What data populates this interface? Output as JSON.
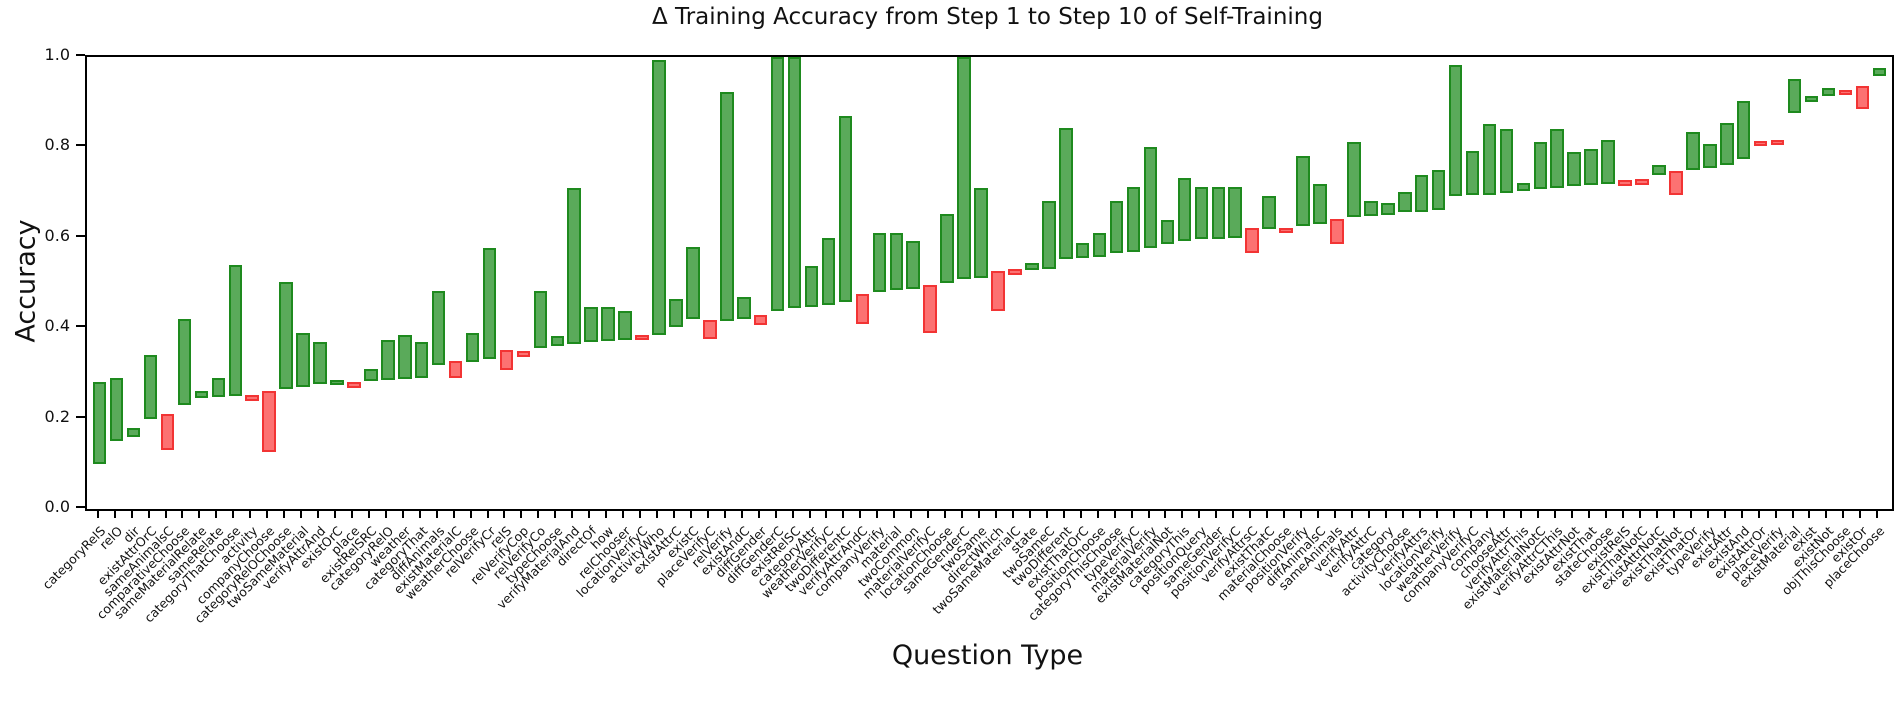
{
  "page": {
    "background": "#ffffff"
  },
  "chart_data": {
    "type": "bar",
    "variant": "floating-range-bars",
    "title": "Δ Training Accuracy from Step 1 to Step 10 of Self-Training",
    "xlabel": "Question Type",
    "ylabel": "Accuracy",
    "ylim": [
      0.0,
      1.0
    ],
    "yticks": [
      "0.0",
      "0.2",
      "0.4",
      "0.6",
      "0.8",
      "1.0"
    ],
    "grid": false,
    "legend": null,
    "colors": {
      "increase_fill": "#5aaa5a",
      "increase_edge": "#1e8a1e",
      "decrease_fill": "#fc7272",
      "decrease_edge": "#f23434",
      "axis": "#000000"
    },
    "semantics": "Each bar spans from Step-1 training accuracy to Step-10 training accuracy; green bars = accuracy increased, red bars = accuracy decreased. Bars sorted by Step-1 accuracy.",
    "bars": [
      {
        "label": "categoryRelS",
        "step1": 0.1,
        "step10": 0.28
      },
      {
        "label": "relO",
        "step1": 0.15,
        "step10": 0.29
      },
      {
        "label": "dir",
        "step1": 0.16,
        "step10": 0.18
      },
      {
        "label": "existAttrOrC",
        "step1": 0.2,
        "step10": 0.34
      },
      {
        "label": "sameAnimalsC",
        "step1": 0.21,
        "step10": 0.13
      },
      {
        "label": "comparativeChoose",
        "step1": 0.23,
        "step10": 0.42
      },
      {
        "label": "sameMaterialRelate",
        "step1": 0.245,
        "step10": 0.262
      },
      {
        "label": "sameRelate",
        "step1": 0.248,
        "step10": 0.29
      },
      {
        "label": "categoryThatChoose",
        "step1": 0.25,
        "step10": 0.54
      },
      {
        "label": "activity",
        "step1": 0.253,
        "step10": 0.24
      },
      {
        "label": "companyChoose",
        "step1": 0.26,
        "step10": 0.125
      },
      {
        "label": "categoryRelOChoose",
        "step1": 0.266,
        "step10": 0.503
      },
      {
        "label": "twoSameMaterial",
        "step1": 0.27,
        "step10": 0.39
      },
      {
        "label": "verifyAttrAnd",
        "step1": 0.276,
        "step10": 0.369
      },
      {
        "label": "existOrC",
        "step1": 0.277,
        "step10": 0.285
      },
      {
        "label": "place",
        "step1": 0.282,
        "step10": 0.268
      },
      {
        "label": "existRelSRC",
        "step1": 0.283,
        "step10": 0.31
      },
      {
        "label": "categoryRelO",
        "step1": 0.285,
        "step10": 0.375
      },
      {
        "label": "weather",
        "step1": 0.288,
        "step10": 0.386
      },
      {
        "label": "categoryThat",
        "step1": 0.29,
        "step10": 0.37
      },
      {
        "label": "diffAnimals",
        "step1": 0.319,
        "step10": 0.482
      },
      {
        "label": "existMaterialC",
        "step1": 0.327,
        "step10": 0.29
      },
      {
        "label": "weatherChoose",
        "step1": 0.325,
        "step10": 0.39
      },
      {
        "label": "relVerifyCr",
        "step1": 0.331,
        "step10": 0.577
      },
      {
        "label": "relS",
        "step1": 0.351,
        "step10": 0.307
      },
      {
        "label": "relVerifyCop",
        "step1": 0.349,
        "step10": 0.336
      },
      {
        "label": "relVerifyCo",
        "step1": 0.356,
        "step10": 0.482
      },
      {
        "label": "typeChoose",
        "step1": 0.361,
        "step10": 0.383
      },
      {
        "label": "verifyMaterialAnd",
        "step1": 0.364,
        "step10": 0.71
      },
      {
        "label": "directOf",
        "step1": 0.369,
        "step10": 0.447
      },
      {
        "label": "how",
        "step1": 0.371,
        "step10": 0.447
      },
      {
        "label": "relChooser",
        "step1": 0.373,
        "step10": 0.437
      },
      {
        "label": "locationVerifyC",
        "step1": 0.385,
        "step10": 0.378
      },
      {
        "label": "activityWho",
        "step1": 0.384,
        "step10": 0.993
      },
      {
        "label": "existAttrC",
        "step1": 0.403,
        "step10": 0.464
      },
      {
        "label": "existC",
        "step1": 0.42,
        "step10": 0.58
      },
      {
        "label": "placeVerifyC",
        "step1": 0.418,
        "step10": 0.375
      },
      {
        "label": "relVerify",
        "step1": 0.417,
        "step10": 0.923
      },
      {
        "label": "existAndC",
        "step1": 0.42,
        "step10": 0.469
      },
      {
        "label": "diffGender",
        "step1": 0.43,
        "step10": 0.406
      },
      {
        "label": "diffGenderC",
        "step1": 0.437,
        "step10": 1.0
      },
      {
        "label": "existRelSC",
        "step1": 0.445,
        "step10": 1.0
      },
      {
        "label": "categoryAttr",
        "step1": 0.447,
        "step10": 0.538
      },
      {
        "label": "weatherVerifyC",
        "step1": 0.451,
        "step10": 0.6
      },
      {
        "label": "twoDifferentC",
        "step1": 0.457,
        "step10": 0.87
      },
      {
        "label": "verifyAttrAndC",
        "step1": 0.476,
        "step10": 0.41
      },
      {
        "label": "companyVerify",
        "step1": 0.48,
        "step10": 0.611
      },
      {
        "label": "material",
        "step1": 0.484,
        "step10": 0.611
      },
      {
        "label": "twoCommon",
        "step1": 0.487,
        "step10": 0.592
      },
      {
        "label": "materialVerifyC",
        "step1": 0.496,
        "step10": 0.39
      },
      {
        "label": "locationChoose",
        "step1": 0.501,
        "step10": 0.653
      },
      {
        "label": "sameGenderC",
        "step1": 0.508,
        "step10": 1.0
      },
      {
        "label": "twoSame",
        "step1": 0.51,
        "step10": 0.71
      },
      {
        "label": "directWhich",
        "step1": 0.526,
        "step10": 0.437
      },
      {
        "label": "twoSameMaterialC",
        "step1": 0.532,
        "step10": 0.517
      },
      {
        "label": "state",
        "step1": 0.528,
        "step10": 0.545
      },
      {
        "label": "twoSameC",
        "step1": 0.53,
        "step10": 0.681
      },
      {
        "label": "twoDifferent",
        "step1": 0.554,
        "step10": 0.843
      },
      {
        "label": "existThatOrC",
        "step1": 0.556,
        "step10": 0.589
      },
      {
        "label": "positionChoose",
        "step1": 0.558,
        "step10": 0.611
      },
      {
        "label": "categoryThisChoose",
        "step1": 0.567,
        "step10": 0.681
      },
      {
        "label": "typeVerifyC",
        "step1": 0.569,
        "step10": 0.712
      },
      {
        "label": "materialVerify",
        "step1": 0.577,
        "step10": 0.801
      },
      {
        "label": "existMaterialNot",
        "step1": 0.587,
        "step10": 0.639
      },
      {
        "label": "categoryThis",
        "step1": 0.592,
        "step10": 0.732
      },
      {
        "label": "positionQuery",
        "step1": 0.597,
        "step10": 0.712
      },
      {
        "label": "sameGender",
        "step1": 0.598,
        "step10": 0.712
      },
      {
        "label": "positionVerifyC",
        "step1": 0.599,
        "step10": 0.712
      },
      {
        "label": "verifyAttrsC",
        "step1": 0.622,
        "step10": 0.567
      },
      {
        "label": "existThatC",
        "step1": 0.619,
        "step10": 0.692
      },
      {
        "label": "materialChoose",
        "step1": 0.622,
        "step10": 0.614
      },
      {
        "label": "positionVerify",
        "step1": 0.626,
        "step10": 0.781
      },
      {
        "label": "diffAnimalsC",
        "step1": 0.631,
        "step10": 0.72
      },
      {
        "label": "sameAnimals",
        "step1": 0.642,
        "step10": 0.587
      },
      {
        "label": "verifyAttr",
        "step1": 0.646,
        "step10": 0.813
      },
      {
        "label": "verifyAttrC",
        "step1": 0.648,
        "step10": 0.681
      },
      {
        "label": "category",
        "step1": 0.651,
        "step10": 0.678
      },
      {
        "label": "activityChoose",
        "step1": 0.656,
        "step10": 0.701
      },
      {
        "label": "verifyAttrs",
        "step1": 0.657,
        "step10": 0.74
      },
      {
        "label": "locationVerify",
        "step1": 0.661,
        "step10": 0.751
      },
      {
        "label": "weatherVerify",
        "step1": 0.693,
        "step10": 0.983
      },
      {
        "label": "companyVerifyC",
        "step1": 0.694,
        "step10": 0.791
      },
      {
        "label": "company",
        "step1": 0.695,
        "step10": 0.852
      },
      {
        "label": "chooseAttr",
        "step1": 0.698,
        "step10": 0.84
      },
      {
        "label": "verifyAttrThis",
        "step1": 0.703,
        "step10": 0.722
      },
      {
        "label": "existMaterialNotC",
        "step1": 0.709,
        "step10": 0.813
      },
      {
        "label": "verifyAttrCThis",
        "step1": 0.71,
        "step10": 0.841
      },
      {
        "label": "existAttrNot",
        "step1": 0.715,
        "step10": 0.79
      },
      {
        "label": "existThat",
        "step1": 0.716,
        "step10": 0.796
      },
      {
        "label": "stateChoose",
        "step1": 0.718,
        "step10": 0.816
      },
      {
        "label": "existRelS",
        "step1": 0.728,
        "step10": 0.715
      },
      {
        "label": "existThatNotC",
        "step1": 0.729,
        "step10": 0.716
      },
      {
        "label": "existAttrNotC",
        "step1": 0.74,
        "step10": 0.762
      },
      {
        "label": "existThatNot",
        "step1": 0.748,
        "step10": 0.695
      },
      {
        "label": "existThatOr",
        "step1": 0.75,
        "step10": 0.833
      },
      {
        "label": "typeVerify",
        "step1": 0.754,
        "step10": 0.808
      },
      {
        "label": "existAttr",
        "step1": 0.762,
        "step10": 0.855
      },
      {
        "label": "existAnd",
        "step1": 0.774,
        "step10": 0.902
      },
      {
        "label": "existAttrOr",
        "step1": 0.815,
        "step10": 0.805
      },
      {
        "label": "placeVerify",
        "step1": 0.816,
        "step10": 0.806
      },
      {
        "label": "existMaterial",
        "step1": 0.875,
        "step10": 0.952
      },
      {
        "label": "exist",
        "step1": 0.9,
        "step10": 0.913
      },
      {
        "label": "existNot",
        "step1": 0.913,
        "step10": 0.932
      },
      {
        "label": "objThisChoose",
        "step1": 0.926,
        "step10": 0.918
      },
      {
        "label": "existOr",
        "step1": 0.935,
        "step10": 0.886
      },
      {
        "label": "placeChoose",
        "step1": 0.959,
        "step10": 0.976
      }
    ]
  }
}
